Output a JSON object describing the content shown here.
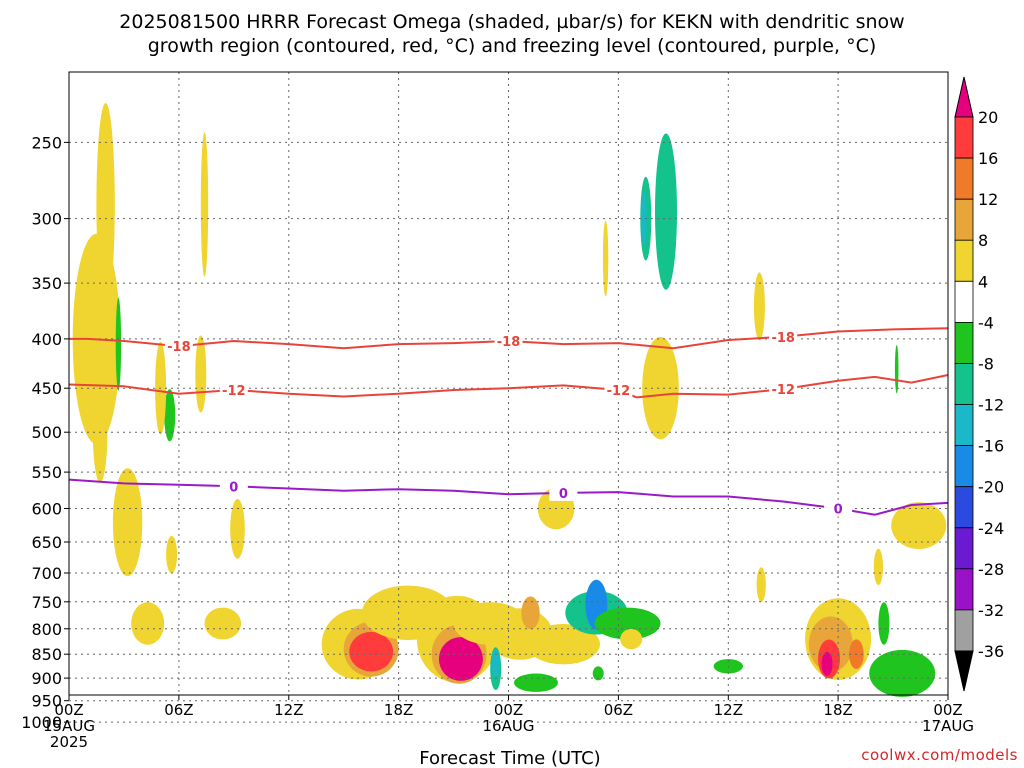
{
  "chart_data": {
    "type": "heatmap",
    "title_line1": "2025081500 HRRR Forecast Omega (shaded, µbar/s) for KEKN with dendritic snow",
    "title_line2": "growth region (contoured, red, °C) and freezing level (contoured, purple, °C)",
    "xlabel": "Forecast Time (UTC)",
    "credit": "coolwx.com/models",
    "x_ticks": [
      "00Z",
      "06Z",
      "12Z",
      "18Z",
      "00Z",
      "06Z",
      "12Z",
      "18Z",
      "00Z"
    ],
    "x_hours": [
      0,
      6,
      12,
      18,
      24,
      30,
      36,
      42,
      48
    ],
    "x_date_labels": [
      {
        "hour": 0,
        "day": "15AUG",
        "year": "2025"
      },
      {
        "hour": 24,
        "day": "16AUG",
        "year": ""
      },
      {
        "hour": 48,
        "day": "17AUG",
        "year": ""
      }
    ],
    "y_ticks": [
      "250",
      "300",
      "350",
      "400",
      "450",
      "500",
      "550",
      "600",
      "650",
      "700",
      "750",
      "800",
      "850",
      "900",
      "950",
      "1000"
    ],
    "y_levels": [
      250,
      300,
      350,
      400,
      450,
      500,
      550,
      600,
      650,
      700,
      750,
      800,
      850,
      900,
      950,
      1000
    ],
    "ylim_hPa": [
      200,
      1030
    ],
    "xlim_hours": [
      0,
      48
    ],
    "grid": true,
    "surface_pressure_hPa": 955,
    "colorbar": {
      "labels": [
        "20",
        "16",
        "12",
        "8",
        "4",
        "-4",
        "-8",
        "-12",
        "-16",
        "-20",
        "-24",
        "-28",
        "-32",
        "-36"
      ],
      "colors": [
        "#ff3b3b",
        "#f07a2a",
        "#e8a63a",
        "#f0d430",
        "#ffffff",
        "#1fc41f",
        "#14c28c",
        "#1ab8c8",
        "#1a8ae8",
        "#2a4ae0",
        "#6a1ad0",
        "#9a12c8",
        "#a0a0a0"
      ],
      "top_arrow": "#e6007e",
      "bottom_arrow": "#000000"
    },
    "contours": [
      {
        "label": "-18",
        "color": "#e8443a",
        "points": [
          [
            0,
            400
          ],
          [
            1,
            400
          ],
          [
            3,
            402
          ],
          [
            6,
            407
          ],
          [
            9,
            402
          ],
          [
            12,
            405
          ],
          [
            15,
            409
          ],
          [
            18,
            405
          ],
          [
            21,
            404
          ],
          [
            24,
            402
          ],
          [
            27,
            405
          ],
          [
            30,
            404
          ],
          [
            33,
            409
          ],
          [
            36,
            401
          ],
          [
            39,
            398
          ],
          [
            42,
            393
          ],
          [
            45,
            391
          ],
          [
            48,
            390
          ]
        ]
      },
      {
        "label": "-12",
        "color": "#e8443a",
        "points": [
          [
            0,
            446
          ],
          [
            3,
            448
          ],
          [
            6,
            456
          ],
          [
            9,
            452
          ],
          [
            12,
            456
          ],
          [
            15,
            459
          ],
          [
            18,
            456
          ],
          [
            21,
            452
          ],
          [
            24,
            450
          ],
          [
            27,
            447
          ],
          [
            30,
            452
          ],
          [
            31,
            460
          ],
          [
            33,
            456
          ],
          [
            36,
            457
          ],
          [
            39,
            451
          ],
          [
            42,
            442
          ],
          [
            44,
            438
          ],
          [
            46,
            444
          ],
          [
            48,
            436
          ]
        ]
      },
      {
        "label": "0",
        "color": "#9a1ac8",
        "points": [
          [
            0,
            560
          ],
          [
            3,
            565
          ],
          [
            6,
            567
          ],
          [
            9,
            569
          ],
          [
            12,
            572
          ],
          [
            15,
            575
          ],
          [
            18,
            573
          ],
          [
            21,
            575
          ],
          [
            24,
            580
          ],
          [
            27,
            578
          ],
          [
            30,
            577
          ],
          [
            33,
            583
          ],
          [
            36,
            583
          ],
          [
            39,
            590
          ],
          [
            42,
            600
          ],
          [
            44,
            609
          ],
          [
            46,
            595
          ],
          [
            48,
            592
          ]
        ]
      }
    ]
  }
}
